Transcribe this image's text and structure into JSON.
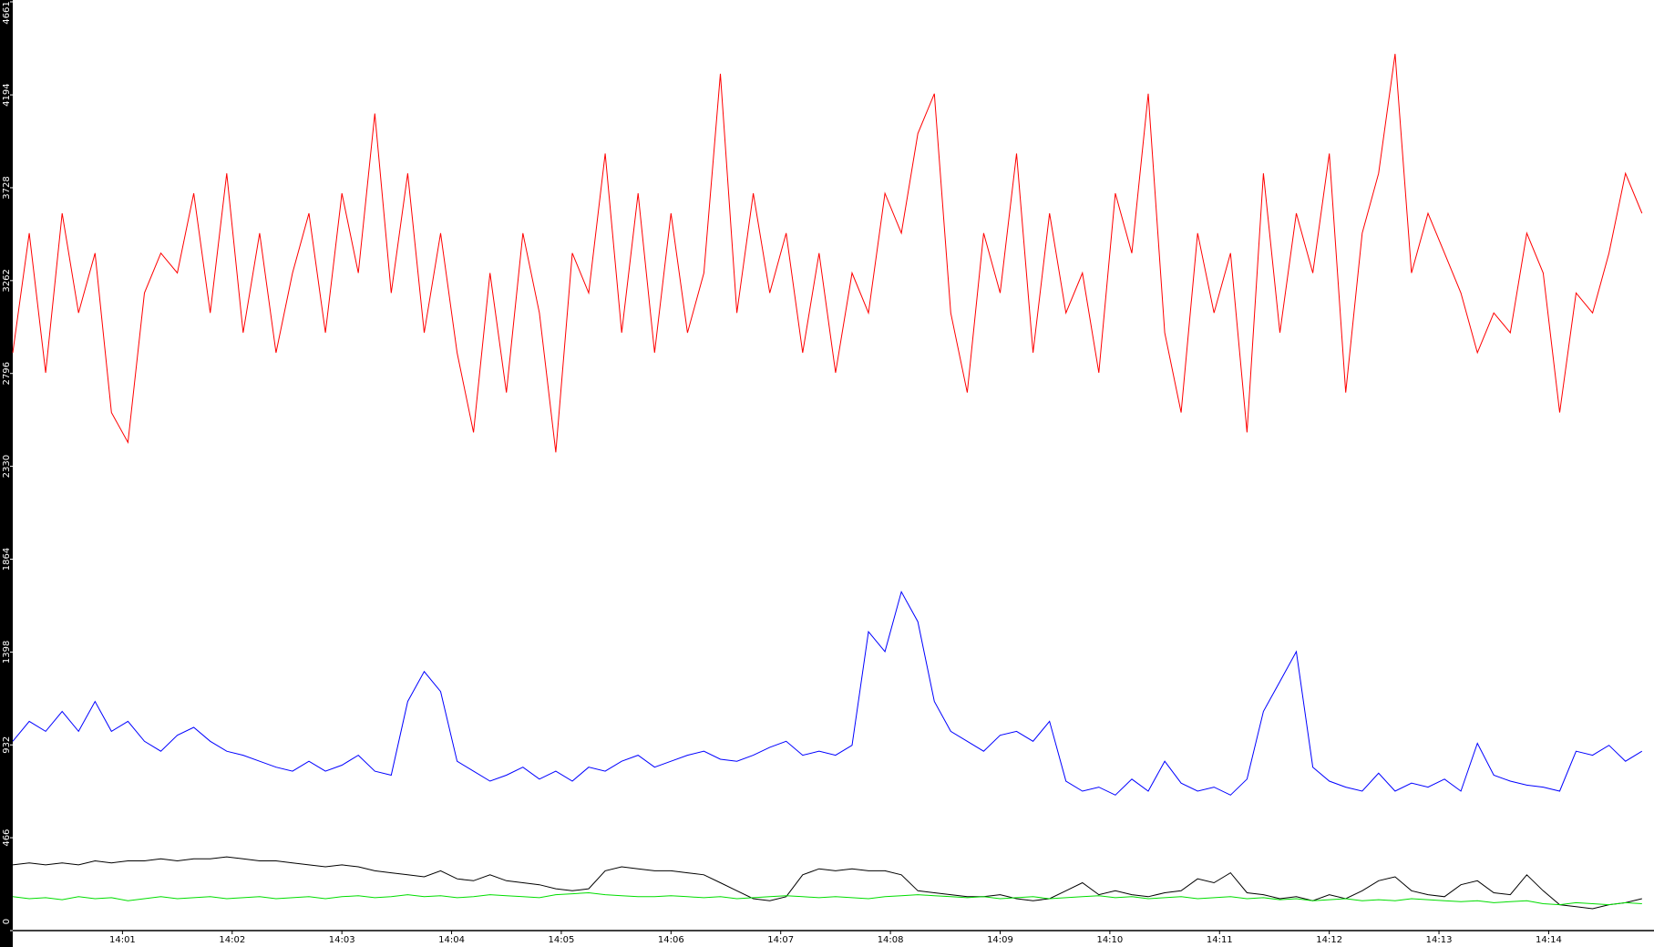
{
  "chart_data": {
    "type": "line",
    "x": [
      0,
      0.15,
      0.3,
      0.45,
      0.6,
      0.75,
      0.9,
      1.05,
      1.2,
      1.35,
      1.5,
      1.65,
      1.8,
      1.95,
      2.1,
      2.25,
      2.4,
      2.55,
      2.7,
      2.85,
      3,
      3.15,
      3.3,
      3.45,
      3.6,
      3.75,
      3.9,
      4.05,
      4.2,
      4.35,
      4.5,
      4.65,
      4.8,
      4.95,
      5.1,
      5.25,
      5.4,
      5.55,
      5.7,
      5.85,
      6,
      6.15,
      6.3,
      6.45,
      6.6,
      6.75,
      6.9,
      7.05,
      7.2,
      7.35,
      7.5,
      7.65,
      7.8,
      7.95,
      8.1,
      8.25,
      8.4,
      8.55,
      8.7,
      8.85,
      9,
      9.15,
      9.3,
      9.45,
      9.6,
      9.75,
      9.9,
      10.05,
      10.2,
      10.35,
      10.5,
      10.65,
      10.8,
      10.95,
      11.1,
      11.25,
      11.4,
      11.55,
      11.7,
      11.85,
      12,
      12.15,
      12.3,
      12.45,
      12.6,
      12.75,
      12.9,
      13.05,
      13.2,
      13.35,
      13.5,
      13.65,
      13.8,
      13.95,
      14.1,
      14.25,
      14.4,
      14.55,
      14.7,
      14.85
    ],
    "series": [
      {
        "color": "#ff0000",
        "values": [
          2900,
          3500,
          2800,
          3600,
          3100,
          3400,
          2600,
          2450,
          3200,
          3400,
          3300,
          3700,
          3100,
          3800,
          3000,
          3500,
          2900,
          3300,
          3600,
          3000,
          3700,
          3300,
          4100,
          3200,
          3800,
          3000,
          3500,
          2900,
          2500,
          3300,
          2700,
          3500,
          3100,
          2400,
          3400,
          3200,
          3900,
          3000,
          3700,
          2900,
          3600,
          3000,
          3300,
          4300,
          3100,
          3700,
          3200,
          3500,
          2900,
          3400,
          2800,
          3300,
          3100,
          3700,
          3500,
          4000,
          4200,
          3100,
          2700,
          3500,
          3200,
          3900,
          2900,
          3600,
          3100,
          3300,
          2800,
          3700,
          3400,
          4200,
          3000,
          2600,
          3500,
          3100,
          3400,
          2500,
          3800,
          3000,
          3600,
          3300,
          3900,
          2700,
          3500,
          3800,
          4400,
          3300,
          3600,
          3400,
          3200,
          2900,
          3100,
          3000,
          3500,
          3300,
          2600,
          3200,
          3100,
          3400,
          3800,
          3600
        ]
      },
      {
        "color": "#0000ff",
        "values": [
          950,
          1050,
          1000,
          1100,
          1000,
          1150,
          1000,
          1050,
          950,
          900,
          980,
          1020,
          950,
          900,
          880,
          850,
          820,
          800,
          850,
          800,
          830,
          880,
          800,
          780,
          1150,
          1300,
          1200,
          850,
          800,
          750,
          780,
          820,
          760,
          800,
          750,
          820,
          800,
          850,
          880,
          820,
          850,
          880,
          900,
          860,
          850,
          880,
          920,
          950,
          880,
          900,
          880,
          930,
          1500,
          1400,
          1700,
          1550,
          1150,
          1000,
          950,
          900,
          980,
          1000,
          950,
          1050,
          750,
          700,
          720,
          680,
          760,
          700,
          850,
          740,
          700,
          720,
          680,
          760,
          1100,
          1250,
          1400,
          820,
          750,
          720,
          700,
          790,
          700,
          740,
          720,
          760,
          700,
          940,
          780,
          750,
          730,
          720,
          700,
          900,
          880,
          930,
          850,
          900
        ]
      },
      {
        "color": "#000000",
        "values": [
          330,
          340,
          330,
          340,
          330,
          350,
          340,
          350,
          350,
          360,
          350,
          360,
          360,
          370,
          360,
          350,
          350,
          340,
          330,
          320,
          330,
          320,
          300,
          290,
          280,
          270,
          300,
          260,
          250,
          280,
          250,
          240,
          230,
          210,
          200,
          210,
          300,
          320,
          310,
          300,
          300,
          290,
          280,
          240,
          200,
          160,
          150,
          170,
          280,
          310,
          300,
          310,
          300,
          300,
          280,
          200,
          190,
          180,
          170,
          170,
          180,
          160,
          150,
          160,
          200,
          240,
          180,
          200,
          180,
          170,
          190,
          200,
          260,
          240,
          290,
          190,
          180,
          160,
          170,
          150,
          180,
          160,
          200,
          250,
          270,
          200,
          180,
          170,
          230,
          250,
          190,
          180,
          280,
          200,
          130,
          120,
          110,
          130,
          140,
          160
        ]
      },
      {
        "color": "#00dd00",
        "values": [
          170,
          160,
          165,
          155,
          170,
          160,
          165,
          150,
          160,
          170,
          160,
          165,
          170,
          160,
          165,
          170,
          160,
          165,
          170,
          160,
          170,
          175,
          165,
          170,
          180,
          170,
          175,
          165,
          170,
          180,
          175,
          170,
          165,
          180,
          185,
          190,
          180,
          175,
          170,
          170,
          175,
          170,
          165,
          170,
          160,
          165,
          170,
          175,
          170,
          165,
          170,
          165,
          160,
          170,
          175,
          180,
          175,
          170,
          165,
          170,
          160,
          165,
          170,
          160,
          165,
          170,
          175,
          165,
          170,
          160,
          165,
          170,
          160,
          165,
          170,
          160,
          165,
          155,
          160,
          150,
          155,
          160,
          150,
          155,
          150,
          160,
          155,
          150,
          145,
          150,
          140,
          145,
          150,
          135,
          130,
          140,
          135,
          130,
          140,
          135
        ]
      }
    ],
    "xlim": [
      0,
      14.96
    ],
    "xticks": [
      {
        "value": 1,
        "label": "14:01"
      },
      {
        "value": 2,
        "label": "14:02"
      },
      {
        "value": 3,
        "label": "14:03"
      },
      {
        "value": 4,
        "label": "14:04"
      },
      {
        "value": 5,
        "label": "14:05"
      },
      {
        "value": 6,
        "label": "14:06"
      },
      {
        "value": 7,
        "label": "14:07"
      },
      {
        "value": 8,
        "label": "14:08"
      },
      {
        "value": 9,
        "label": "14:09"
      },
      {
        "value": 10,
        "label": "14:10"
      },
      {
        "value": 11,
        "label": "14:11"
      },
      {
        "value": 12,
        "label": "14:12"
      },
      {
        "value": 13,
        "label": "14:13"
      },
      {
        "value": 14,
        "label": "14:14"
      }
    ],
    "ylim": [
      0,
      4661
    ],
    "yticks": [
      0,
      466,
      932,
      1398,
      1864,
      2330,
      2796,
      3262,
      3728,
      4194,
      4661
    ]
  }
}
